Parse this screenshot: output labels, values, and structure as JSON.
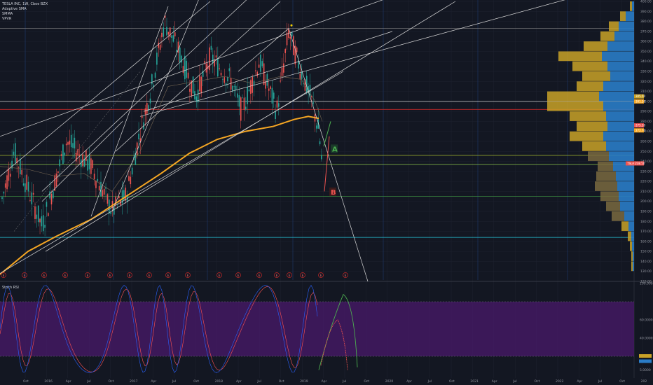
{
  "legend": {
    "title": "TESLA INC, 1W, Cboe BZX",
    "lines": [
      "Adaptive SMA",
      "SMMA",
      "VPVR"
    ]
  },
  "oscillator": {
    "title": "Stoch RSI"
  },
  "price_labels": {
    "b1": "305.50",
    "b2": "301.20",
    "b3": "275.20",
    "b4": "272.70",
    "current": "TSLA 238.50"
  },
  "colors": {
    "background": "#131722",
    "up": "#26a69a",
    "down": "#ef5350",
    "sma": "#f5a623",
    "vp_up": "#2a7cc7",
    "vp_down": "#c9a227",
    "stoch_k": "#2962ff",
    "stoch_d": "#ff5252",
    "band": "#4a1a6b"
  },
  "chart_data": [
    {
      "type": "candlestick",
      "title": "TESLA INC, 1W, Cboe BZX",
      "ylim": [
        120,
        400
      ],
      "y_ticks": [
        "120.00",
        "130.00",
        "140.00",
        "150.00",
        "160.00",
        "170.00",
        "180.00",
        "190.00",
        "200.00",
        "210.00",
        "220.00",
        "230.00",
        "240.00",
        "250.00",
        "260.00",
        "270.00",
        "280.00",
        "290.00",
        "300.00",
        "310.00",
        "320.00",
        "330.00",
        "340.00",
        "350.00",
        "360.00",
        "370.00",
        "380.00",
        "390.00",
        "400.00"
      ],
      "x_ticks": [
        "Oct",
        "2016",
        "Apr",
        "Jul",
        "Oct",
        "2017",
        "Apr",
        "Jul",
        "Oct",
        "2018",
        "Apr",
        "Jul",
        "Oct",
        "2019",
        "Apr",
        "Jul",
        "Oct",
        "2020",
        "Apr",
        "Jul",
        "Oct",
        "2021",
        "Apr",
        "Jul",
        "Oct",
        "2022",
        "Apr",
        "Jul",
        "Oct",
        "202"
      ],
      "horizontal_levels": [
        373,
        300,
        292,
        246,
        237,
        205,
        164
      ],
      "annotations": [
        {
          "text": "A",
          "price": 252
        },
        {
          "text": "B",
          "price": 209
        }
      ],
      "events_label": "E"
    },
    {
      "type": "line",
      "title": "Stoch RSI",
      "ylim": [
        0,
        100
      ],
      "y_ticks": [
        "100.0000",
        "60.0000",
        "40.0000",
        "5.0000"
      ],
      "band": [
        20,
        80
      ]
    }
  ]
}
